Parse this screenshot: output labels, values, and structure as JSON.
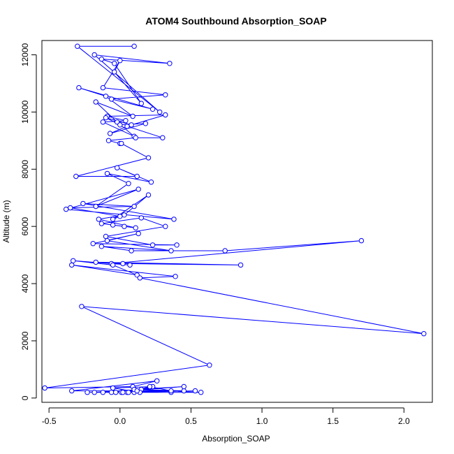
{
  "chart_data": {
    "type": "line",
    "title": "ATOM4 Southbound Absorption_SOAP",
    "xlabel": "Absorption_SOAP",
    "ylabel": "Altitude (m)",
    "xlim": [
      -0.55,
      2.2
    ],
    "ylim": [
      -150,
      12500
    ],
    "xticks": [
      -0.5,
      0.0,
      0.5,
      1.0,
      1.5,
      2.0
    ],
    "xtick_labels": [
      "-0.5",
      "0.0",
      "0.5",
      "1.0",
      "1.5",
      "2.0"
    ],
    "yticks": [
      0,
      2000,
      4000,
      6000,
      8000,
      10000,
      12000
    ],
    "ytick_labels": [
      "0",
      "2000",
      "4000",
      "6000",
      "8000",
      "10000",
      "12000"
    ],
    "grid": false,
    "markers": "open-circle",
    "line_color": "#0000ff",
    "series": [
      {
        "x": [
          0.1,
          -0.3,
          0.28,
          -0.18,
          0.35,
          -0.13,
          -0.04,
          0.15,
          -0.04,
          0.0,
          -0.12,
          0.32,
          -0.06,
          0.23,
          -0.29,
          -0.1,
          0.09,
          -0.17,
          -0.02,
          0.1,
          -0.12,
          0.04,
          -0.09,
          0.32,
          0.08,
          -0.1,
          0.0,
          0.18,
          -0.07,
          0.05,
          0.3,
          0.11,
          -0.08,
          0.0,
          0.01,
          0.2,
          -0.31,
          0.12,
          -0.02,
          0.22,
          -0.09,
          0.06,
          -0.17,
          0.13,
          -0.38,
          0.38,
          -0.26,
          0.1,
          -0.35,
          0.0,
          -0.05,
          0.2,
          0.03,
          -0.15,
          0.11,
          -0.05,
          0.03,
          -0.13,
          0.15,
          0.32,
          -0.1,
          0.23,
          0.4,
          -0.19,
          0.13,
          -0.09,
          0.36,
          -0.13,
          0.08,
          0.74,
          1.7,
          -0.06,
          0.02,
          0.85,
          -0.17,
          0.07,
          -0.33,
          -0.05,
          0.12,
          -0.34,
          0.39,
          0.14,
          2.14,
          -0.27,
          0.63,
          -0.53,
          0.09,
          0.26,
          -0.34,
          0.45,
          0.15,
          -0.18,
          0.05,
          0.36,
          0.01,
          -0.23,
          0.1,
          -0.06,
          0.53,
          0.02,
          0.57,
          0.1,
          0.45,
          -0.12,
          0.14,
          -0.05,
          0.23,
          0.12,
          0.06,
          0.21,
          0.36,
          -0.03
        ],
        "y": [
          12300,
          12300,
          10000,
          12000,
          11700,
          11850,
          11700,
          10300,
          11400,
          11800,
          10850,
          10600,
          10450,
          10100,
          10850,
          10550,
          9850,
          10350,
          9650,
          9150,
          9650,
          9700,
          9850,
          9900,
          9550,
          9800,
          9550,
          9600,
          9250,
          9500,
          9100,
          9100,
          9000,
          8900,
          8900,
          8400,
          7750,
          7750,
          8050,
          7550,
          7850,
          7500,
          6700,
          7300,
          6600,
          6250,
          6800,
          6700,
          6650,
          6350,
          6250,
          7100,
          6400,
          6250,
          5950,
          6050,
          6000,
          6100,
          6300,
          6000,
          5650,
          5350,
          5350,
          5400,
          5750,
          5500,
          5150,
          5300,
          5150,
          5150,
          5500,
          4700,
          4700,
          4650,
          4750,
          4650,
          4800,
          4650,
          4300,
          4650,
          4250,
          4200,
          2250,
          3200,
          1150,
          350,
          400,
          600,
          250,
          250,
          300,
          200,
          200,
          200,
          200,
          200,
          200,
          200,
          250,
          200,
          200,
          300,
          400,
          200,
          200,
          350,
          400,
          250,
          200,
          400,
          250,
          200
        ]
      }
    ]
  }
}
